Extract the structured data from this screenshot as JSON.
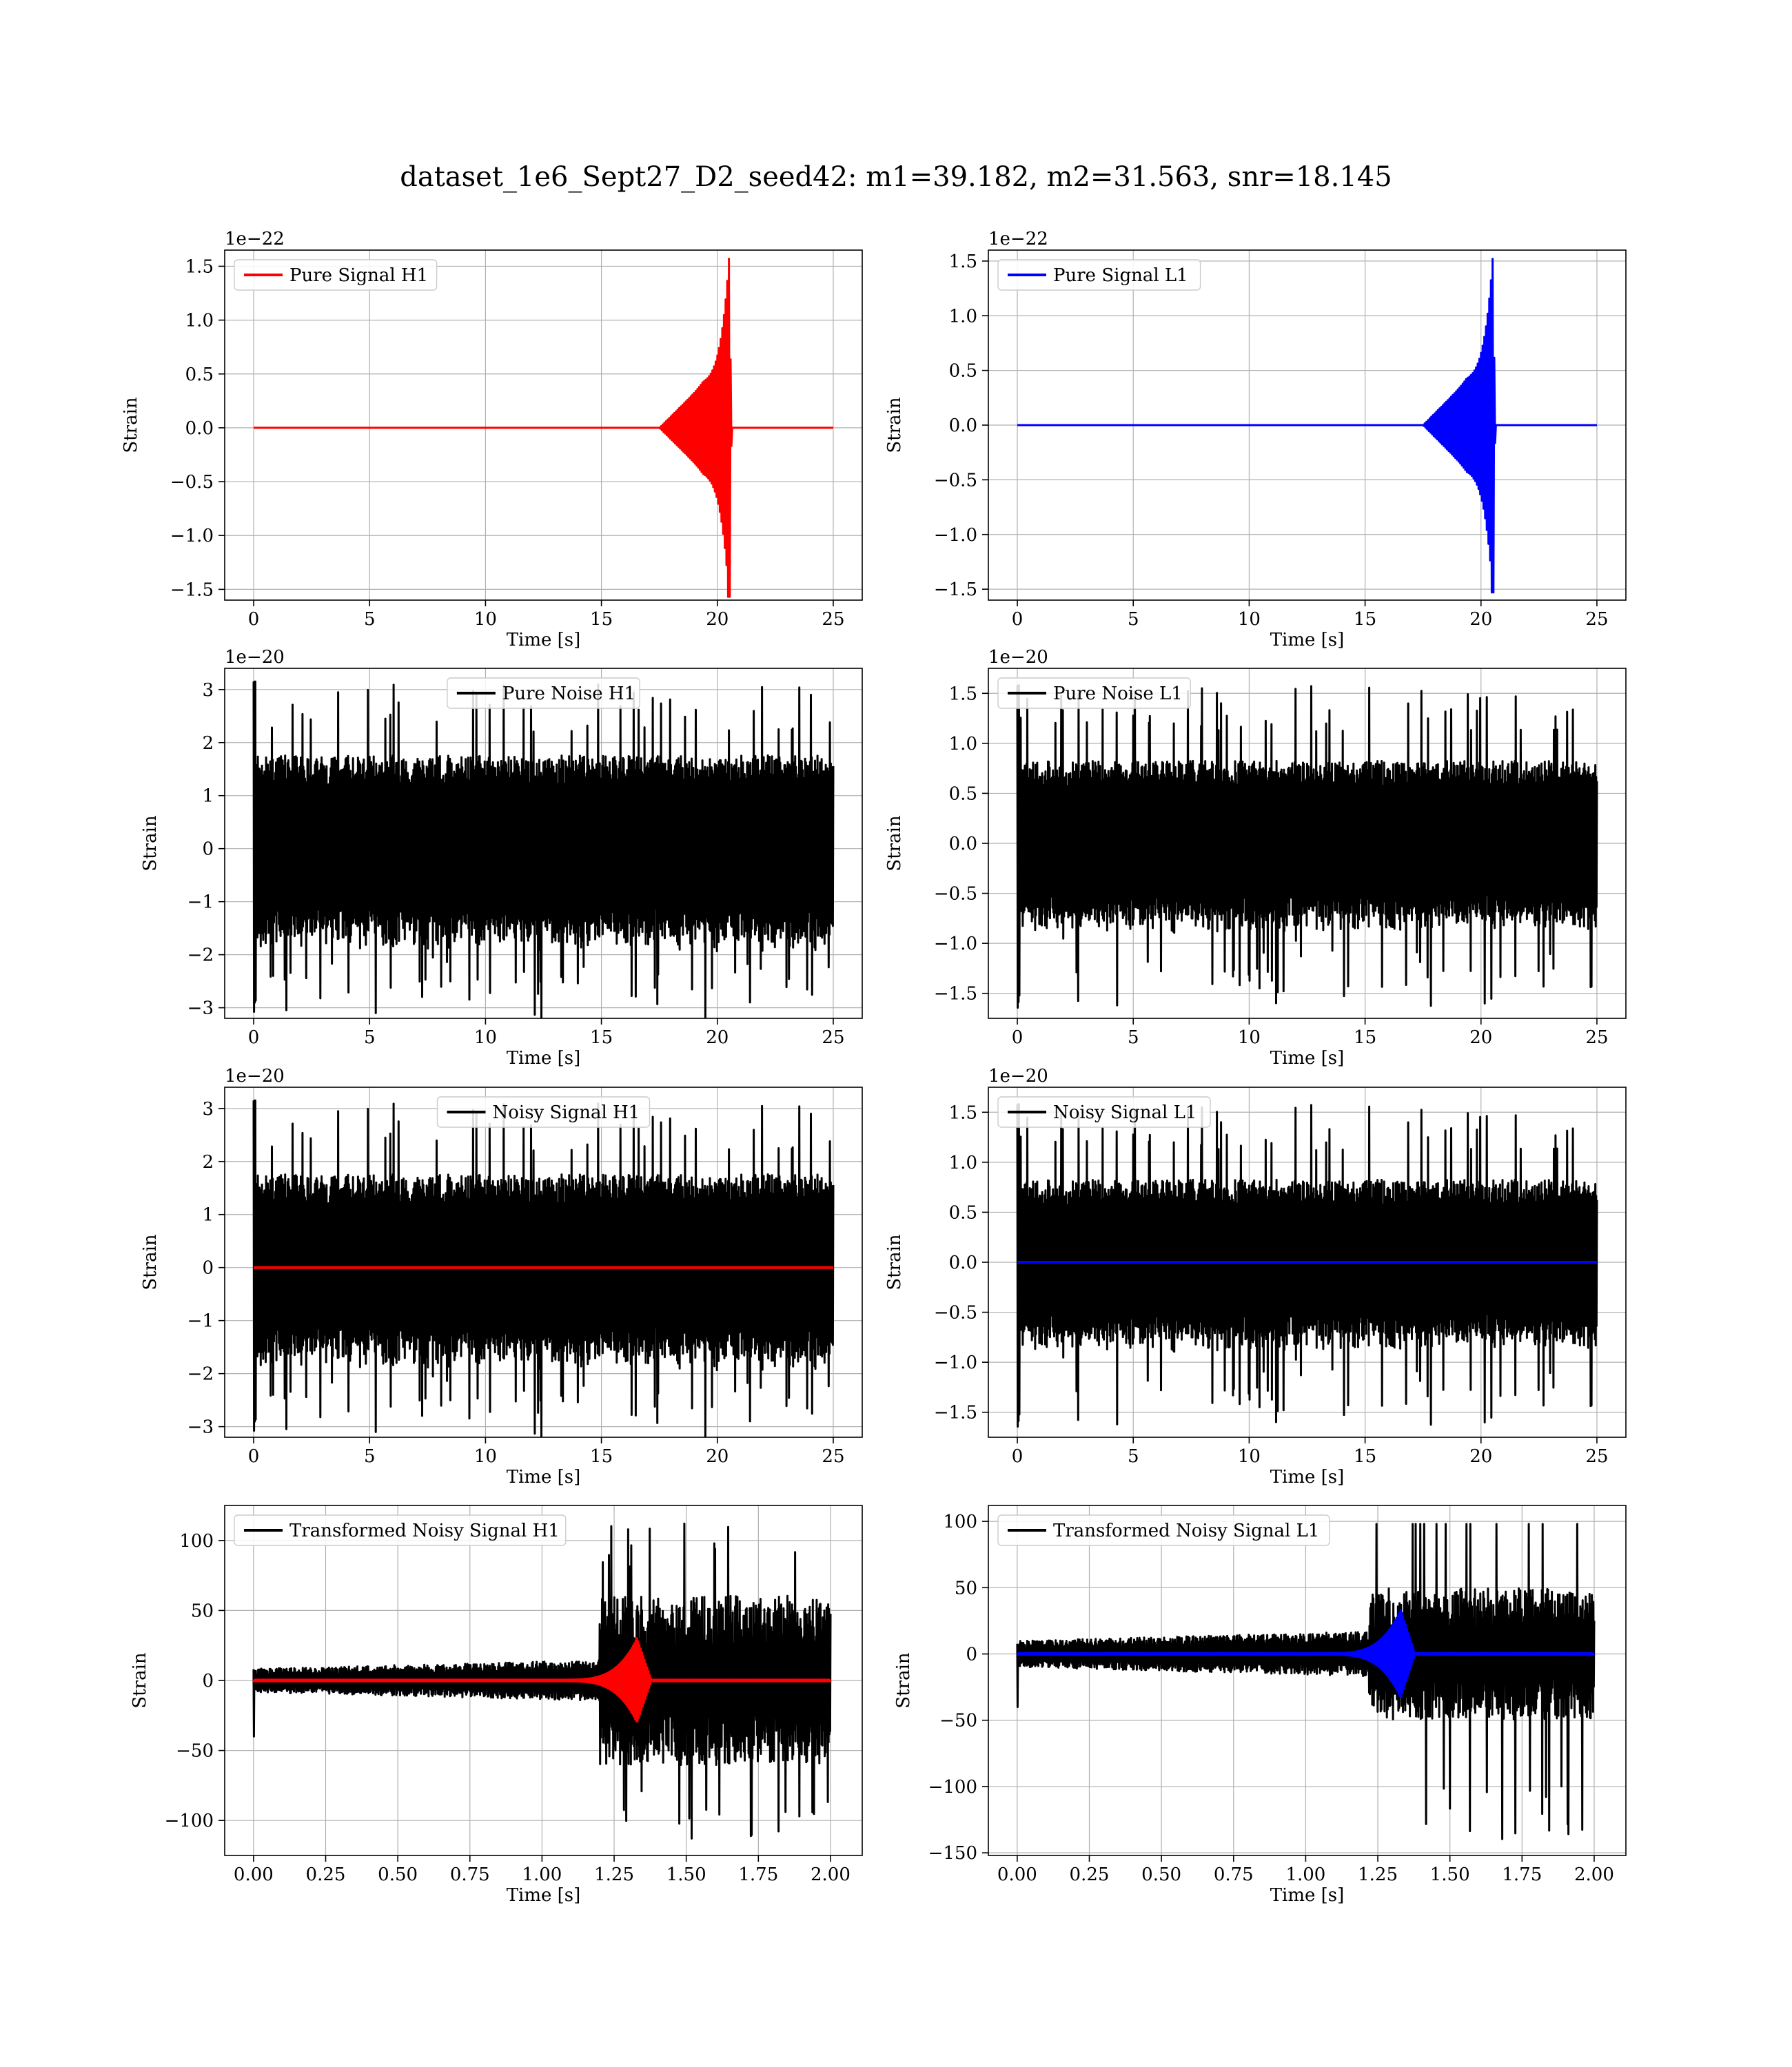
{
  "suptitle": "dataset_1e6_Sept27_D2_seed42: m1=39.182, m2=31.563, snr=18.145",
  "colors": {
    "red": "#ff0000",
    "blue": "#0000ff",
    "black": "#000000",
    "grid": "#b0b0b0"
  },
  "chart_data": [
    {
      "type": "line",
      "kind": "chirp",
      "legend": "Pure Signal H1",
      "legend_loc": "upper-left",
      "xlabel": "Time [s]",
      "ylabel": "Strain",
      "offset_text": "1e−22",
      "xlim": [
        -1.25,
        26.25
      ],
      "ylim": [
        -1.6,
        1.65
      ],
      "xticks": [
        0,
        5,
        10,
        15,
        20,
        25
      ],
      "xtick_labels": [
        "0",
        "5",
        "10",
        "15",
        "20",
        "25"
      ],
      "yticks": [
        -1.5,
        -1.0,
        -0.5,
        0.0,
        0.5,
        1.0,
        1.5
      ],
      "ytick_labels": [
        "−1.5",
        "−1.0",
        "−0.5",
        "0.0",
        "0.5",
        "1.0",
        "1.5"
      ],
      "series": [
        {
          "name": "Pure Signal H1",
          "color": "red",
          "t_end": 25,
          "burst_start": 17.5,
          "merger": 20.5,
          "amp_plateau": 0.4,
          "peak_up": 1.57,
          "peak_down": -1.57
        }
      ],
      "grid": true
    },
    {
      "type": "line",
      "kind": "chirp",
      "legend": "Pure Signal L1",
      "legend_loc": "upper-left",
      "xlabel": "Time [s]",
      "ylabel": "Strain",
      "offset_text": "1e−22",
      "xlim": [
        -1.25,
        26.25
      ],
      "ylim": [
        -1.6,
        1.6
      ],
      "xticks": [
        0,
        5,
        10,
        15,
        20,
        25
      ],
      "xtick_labels": [
        "0",
        "5",
        "10",
        "15",
        "20",
        "25"
      ],
      "yticks": [
        -1.5,
        -1.0,
        -0.5,
        0.0,
        0.5,
        1.0,
        1.5
      ],
      "ytick_labels": [
        "−1.5",
        "−1.0",
        "−0.5",
        "0.0",
        "0.5",
        "1.0",
        "1.5"
      ],
      "series": [
        {
          "name": "Pure Signal L1",
          "color": "blue",
          "t_end": 25,
          "burst_start": 17.5,
          "merger": 20.5,
          "amp_plateau": 0.4,
          "peak_up": 1.52,
          "peak_down": -1.53
        }
      ],
      "grid": true
    },
    {
      "type": "line",
      "kind": "noise",
      "legend": "Pure Noise H1",
      "legend_loc": "upper-center",
      "xlabel": "Time [s]",
      "ylabel": "Strain",
      "offset_text": "1e−20",
      "xlim": [
        -1.25,
        26.25
      ],
      "ylim": [
        -3.2,
        3.4
      ],
      "xticks": [
        0,
        5,
        10,
        15,
        20,
        25
      ],
      "xtick_labels": [
        "0",
        "5",
        "10",
        "15",
        "20",
        "25"
      ],
      "yticks": [
        -3,
        -2,
        -1,
        0,
        1,
        2,
        3
      ],
      "ytick_labels": [
        "−3",
        "−2",
        "−1",
        "0",
        "1",
        "2",
        "3"
      ],
      "series": [
        {
          "name": "Pure Noise H1",
          "color": "black",
          "t_end": 25,
          "envelope_max": 3.15,
          "envelope_base": 1.6,
          "seed": 7
        }
      ],
      "grid": true
    },
    {
      "type": "line",
      "kind": "noise",
      "legend": "Pure Noise L1",
      "legend_loc": "upper-left",
      "xlabel": "Time [s]",
      "ylabel": "Strain",
      "offset_text": "1e−20",
      "xlim": [
        -1.25,
        26.25
      ],
      "ylim": [
        -1.75,
        1.75
      ],
      "xticks": [
        0,
        5,
        10,
        15,
        20,
        25
      ],
      "xtick_labels": [
        "0",
        "5",
        "10",
        "15",
        "20",
        "25"
      ],
      "yticks": [
        -1.5,
        -1.0,
        -0.5,
        0.0,
        0.5,
        1.0,
        1.5
      ],
      "ytick_labels": [
        "−1.5",
        "−1.0",
        "−0.5",
        "0.0",
        "0.5",
        "1.0",
        "1.5"
      ],
      "series": [
        {
          "name": "Pure Noise L1",
          "color": "black",
          "t_end": 25,
          "envelope_max": 1.58,
          "envelope_base": 0.75,
          "seed": 11
        }
      ],
      "grid": true
    },
    {
      "type": "line",
      "kind": "noisy",
      "legend": "Noisy Signal H1",
      "legend_loc": "upper-center",
      "xlabel": "Time [s]",
      "ylabel": "Strain",
      "offset_text": "1e−20",
      "xlim": [
        -1.25,
        26.25
      ],
      "ylim": [
        -3.2,
        3.4
      ],
      "xticks": [
        0,
        5,
        10,
        15,
        20,
        25
      ],
      "xtick_labels": [
        "0",
        "5",
        "10",
        "15",
        "20",
        "25"
      ],
      "yticks": [
        -3,
        -2,
        -1,
        0,
        1,
        2,
        3
      ],
      "ytick_labels": [
        "−3",
        "−2",
        "−1",
        "0",
        "1",
        "2",
        "3"
      ],
      "series": [
        {
          "name": "Noisy Signal H1",
          "color": "black",
          "t_end": 25,
          "envelope_max": 3.15,
          "envelope_base": 1.6,
          "seed": 7
        },
        {
          "name": "",
          "color": "red",
          "t_end": 25,
          "flat_value": 0.0
        }
      ],
      "grid": true
    },
    {
      "type": "line",
      "kind": "noisy",
      "legend": "Noisy Signal L1",
      "legend_loc": "upper-left",
      "xlabel": "Time [s]",
      "ylabel": "Strain",
      "offset_text": "1e−20",
      "xlim": [
        -1.25,
        26.25
      ],
      "ylim": [
        -1.75,
        1.75
      ],
      "xticks": [
        0,
        5,
        10,
        15,
        20,
        25
      ],
      "xtick_labels": [
        "0",
        "5",
        "10",
        "15",
        "20",
        "25"
      ],
      "yticks": [
        -1.5,
        -1.0,
        -0.5,
        0.0,
        0.5,
        1.0,
        1.5
      ],
      "ytick_labels": [
        "−1.5",
        "−1.0",
        "−0.5",
        "0.0",
        "0.5",
        "1.0",
        "1.5"
      ],
      "series": [
        {
          "name": "Noisy Signal L1",
          "color": "black",
          "t_end": 25,
          "envelope_max": 1.58,
          "envelope_base": 0.75,
          "seed": 11
        },
        {
          "name": "",
          "color": "blue",
          "t_end": 25,
          "flat_value": 0.0
        }
      ],
      "grid": true
    },
    {
      "type": "line",
      "kind": "whitened",
      "legend": "Transformed Noisy Signal H1",
      "legend_loc": "upper-left",
      "xlabel": "Time [s]",
      "ylabel": "Strain",
      "offset_text": "",
      "xlim": [
        -0.1,
        2.11
      ],
      "ylim": [
        -125,
        125
      ],
      "xticks": [
        0,
        0.25,
        0.5,
        0.75,
        1.0,
        1.25,
        1.5,
        1.75,
        2.0
      ],
      "xtick_labels": [
        "0.00",
        "0.25",
        "0.50",
        "0.75",
        "1.00",
        "1.25",
        "1.50",
        "1.75",
        "2.00"
      ],
      "yticks": [
        -100,
        -50,
        0,
        50,
        100
      ],
      "ytick_labels": [
        "−100",
        "−50",
        "0",
        "50",
        "100"
      ],
      "series": [
        {
          "name": "Transformed Noisy Signal H1",
          "color": "black",
          "t_end": 2.0,
          "step_at": 1.2,
          "amp_low": 6,
          "amp_high": 55,
          "max_up": 113,
          "max_down": -113,
          "seed": 23
        },
        {
          "name": "",
          "color": "red",
          "t_end": 2.0,
          "chirp_start": 1.05,
          "merger": 1.33,
          "peak": 30
        }
      ],
      "grid": true
    },
    {
      "type": "line",
      "kind": "whitened",
      "legend": "Transformed Noisy Signal L1",
      "legend_loc": "upper-left",
      "xlabel": "Time [s]",
      "ylabel": "Strain",
      "offset_text": "",
      "xlim": [
        -0.1,
        2.11
      ],
      "ylim": [
        -152,
        112
      ],
      "xticks": [
        0,
        0.25,
        0.5,
        0.75,
        1.0,
        1.25,
        1.5,
        1.75,
        2.0
      ],
      "xtick_labels": [
        "0.00",
        "0.25",
        "0.50",
        "0.75",
        "1.00",
        "1.25",
        "1.50",
        "1.75",
        "2.00"
      ],
      "yticks": [
        -150,
        -100,
        -50,
        0,
        50,
        100
      ],
      "ytick_labels": [
        "−150",
        "−100",
        "−50",
        "0",
        "50",
        "100"
      ],
      "series": [
        {
          "name": "Transformed Noisy Signal L1",
          "color": "black",
          "t_end": 2.0,
          "step_at": 1.22,
          "amp_low": 7,
          "amp_high": 45,
          "max_up": 98,
          "max_down": -140,
          "seed": 31
        },
        {
          "name": "",
          "color": "blue",
          "t_end": 2.0,
          "chirp_start": 1.05,
          "merger": 1.33,
          "peak": 33
        }
      ],
      "grid": true
    }
  ]
}
